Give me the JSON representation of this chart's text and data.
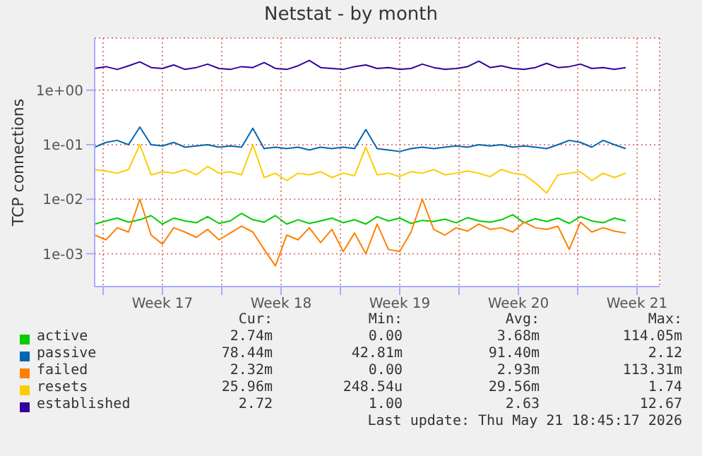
{
  "chart_data": {
    "type": "line",
    "title": "Netstat - by month",
    "ylabel": "TCP connections",
    "x": [
      "2026-04-19T12:00",
      "2026-04-20T04:00",
      "2026-04-20T20:00",
      "2026-04-21T12:00",
      "2026-04-22T04:00",
      "2026-04-22T20:00",
      "2026-04-23T12:00",
      "2026-04-24T04:00",
      "2026-04-24T20:00",
      "2026-04-25T12:00",
      "2026-04-26T04:00",
      "2026-04-26T20:00",
      "2026-04-27T12:00",
      "2026-04-28T04:00",
      "2026-04-28T20:00",
      "2026-04-29T12:00",
      "2026-04-30T04:00",
      "2026-04-30T20:00",
      "2026-05-01T12:00",
      "2026-05-02T04:00",
      "2026-05-02T20:00",
      "2026-05-03T12:00",
      "2026-05-04T04:00",
      "2026-05-04T20:00",
      "2026-05-05T12:00",
      "2026-05-06T04:00",
      "2026-05-06T20:00",
      "2026-05-07T12:00",
      "2026-05-08T04:00",
      "2026-05-08T20:00",
      "2026-05-09T12:00",
      "2026-05-10T04:00",
      "2026-05-10T20:00",
      "2026-05-11T12:00",
      "2026-05-12T04:00",
      "2026-05-12T20:00",
      "2026-05-13T12:00",
      "2026-05-14T04:00",
      "2026-05-14T20:00",
      "2026-05-15T12:00",
      "2026-05-16T04:00",
      "2026-05-16T20:00",
      "2026-05-17T12:00",
      "2026-05-18T04:00",
      "2026-05-18T20:00",
      "2026-05-19T12:00",
      "2026-05-20T04:00",
      "2026-05-20T20:00"
    ],
    "series": [
      {
        "name": "active",
        "color": "#00cc00",
        "values": [
          0.0035,
          0.004,
          0.0045,
          0.0038,
          0.0042,
          0.005,
          0.0035,
          0.0045,
          0.004,
          0.0037,
          0.0048,
          0.0036,
          0.004,
          0.0055,
          0.0042,
          0.0038,
          0.005,
          0.0035,
          0.0042,
          0.0036,
          0.004,
          0.0045,
          0.0037,
          0.0042,
          0.0035,
          0.0048,
          0.004,
          0.0045,
          0.0036,
          0.0041,
          0.0039,
          0.0043,
          0.0037,
          0.0046,
          0.004,
          0.0038,
          0.0042,
          0.0052,
          0.0037,
          0.0044,
          0.0039,
          0.0045,
          0.0036,
          0.0048,
          0.004,
          0.0037,
          0.0045,
          0.004
        ]
      },
      {
        "name": "passive",
        "color": "#0066b3",
        "values": [
          0.09,
          0.11,
          0.12,
          0.1,
          0.21,
          0.1,
          0.095,
          0.11,
          0.09,
          0.095,
          0.1,
          0.09,
          0.095,
          0.09,
          0.2,
          0.085,
          0.09,
          0.085,
          0.09,
          0.08,
          0.09,
          0.085,
          0.09,
          0.085,
          0.19,
          0.085,
          0.08,
          0.075,
          0.085,
          0.09,
          0.085,
          0.09,
          0.095,
          0.09,
          0.1,
          0.095,
          0.1,
          0.09,
          0.095,
          0.09,
          0.085,
          0.1,
          0.12,
          0.11,
          0.09,
          0.12,
          0.1,
          0.085
        ]
      },
      {
        "name": "failed",
        "color": "#ff8000",
        "values": [
          0.0022,
          0.0018,
          0.003,
          0.0025,
          0.01,
          0.0022,
          0.0015,
          0.003,
          0.0025,
          0.002,
          0.0028,
          0.0018,
          0.0024,
          0.0032,
          0.0025,
          0.0012,
          0.0006,
          0.0022,
          0.0018,
          0.003,
          0.0016,
          0.0028,
          0.0011,
          0.0024,
          0.001,
          0.0035,
          0.0012,
          0.0011,
          0.0025,
          0.01,
          0.0028,
          0.0022,
          0.003,
          0.0026,
          0.0035,
          0.0028,
          0.003,
          0.0025,
          0.0038,
          0.003,
          0.0028,
          0.0032,
          0.0012,
          0.0038,
          0.0025,
          0.003,
          0.0026,
          0.0024
        ]
      },
      {
        "name": "resets",
        "color": "#ffcc00",
        "values": [
          0.035,
          0.033,
          0.03,
          0.035,
          0.1,
          0.028,
          0.032,
          0.03,
          0.035,
          0.028,
          0.04,
          0.03,
          0.032,
          0.028,
          0.1,
          0.025,
          0.03,
          0.022,
          0.03,
          0.028,
          0.032,
          0.025,
          0.03,
          0.027,
          0.09,
          0.028,
          0.03,
          0.026,
          0.032,
          0.03,
          0.035,
          0.028,
          0.03,
          0.033,
          0.03,
          0.026,
          0.035,
          0.03,
          0.028,
          0.02,
          0.013,
          0.028,
          0.03,
          0.032,
          0.022,
          0.03,
          0.025,
          0.03
        ]
      },
      {
        "name": "established",
        "color": "#330099",
        "values": [
          2.5,
          2.7,
          2.4,
          2.8,
          3.3,
          2.6,
          2.5,
          2.9,
          2.4,
          2.6,
          3.0,
          2.5,
          2.4,
          2.7,
          2.6,
          3.2,
          2.5,
          2.4,
          2.8,
          3.5,
          2.6,
          2.5,
          2.4,
          2.7,
          2.9,
          2.5,
          2.6,
          2.4,
          2.5,
          3.0,
          2.6,
          2.4,
          2.5,
          2.7,
          3.4,
          2.6,
          2.8,
          2.5,
          2.4,
          2.6,
          3.1,
          2.6,
          2.7,
          3.0,
          2.5,
          2.6,
          2.4,
          2.6
        ]
      }
    ],
    "log": "y",
    "ylim": [
      0.00025,
      9
    ],
    "yticks": [
      {
        "value": 0.001,
        "label": "1e-03"
      },
      {
        "value": 0.01,
        "label": "1e-02"
      },
      {
        "value": 0.1,
        "label": "1e-01"
      },
      {
        "value": 1,
        "label": "1e+00"
      }
    ],
    "xlim": [
      "2026-04-19T12:00",
      "2026-05-22T20:00"
    ],
    "xticks": [
      {
        "value": "2026-04-20",
        "label": null
      },
      {
        "value": "2026-04-23T12:00",
        "label": "Week 17"
      },
      {
        "value": "2026-04-27",
        "label": null
      },
      {
        "value": "2026-04-30T12:00",
        "label": "Week 18"
      },
      {
        "value": "2026-05-04",
        "label": null
      },
      {
        "value": "2026-05-07T12:00",
        "label": "Week 19"
      },
      {
        "value": "2026-05-11",
        "label": null
      },
      {
        "value": "2026-05-14T12:00",
        "label": "Week 20"
      },
      {
        "value": "2026-05-18",
        "label": null
      },
      {
        "value": "2026-05-21T12:00",
        "label": "Week 21"
      }
    ],
    "grid": true,
    "legend": "bottom",
    "marker": "none",
    "line_style": "solid",
    "annotations": [
      "Cur:",
      "Min:",
      "Avg:",
      "Max:",
      "2.74m",
      "0.00",
      "3.68m",
      "114.05m",
      "78.44m",
      "42.81m",
      "91.40m",
      "2.12",
      "2.32m",
      "0.00",
      "2.93m",
      "113.31m",
      "25.96m",
      "248.54u",
      "29.56m",
      "1.74",
      "2.72",
      "1.00",
      "2.63",
      "12.67",
      "Last update: Thu May 21 18:45:17 2026"
    ]
  }
}
